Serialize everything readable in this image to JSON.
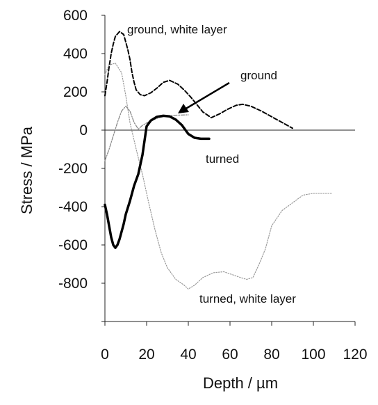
{
  "chart_data": {
    "type": "line",
    "title": "",
    "xlabel": "Depth / µm",
    "ylabel": "Stress / MPa",
    "xlim": [
      0,
      120
    ],
    "ylim": [
      -1000,
      600
    ],
    "x_ticks": [
      0,
      20,
      40,
      60,
      80,
      100,
      120
    ],
    "y_ticks": [
      600,
      400,
      200,
      0,
      -200,
      -400,
      -600,
      -800
    ],
    "grid": false,
    "legend": "none",
    "series": [
      {
        "name": "ground, white layer",
        "style": "dashed",
        "color": "#000000",
        "points": [
          [
            0,
            180
          ],
          [
            1,
            250
          ],
          [
            2,
            330
          ],
          [
            3,
            400
          ],
          [
            4,
            450
          ],
          [
            5,
            490
          ],
          [
            7,
            515
          ],
          [
            9,
            500
          ],
          [
            11,
            420
          ],
          [
            12,
            370
          ],
          [
            13,
            300
          ],
          [
            14,
            250
          ],
          [
            15,
            210
          ],
          [
            17,
            185
          ],
          [
            19,
            180
          ],
          [
            22,
            195
          ],
          [
            25,
            220
          ],
          [
            28,
            250
          ],
          [
            31,
            260
          ],
          [
            35,
            240
          ],
          [
            38,
            210
          ],
          [
            41,
            175
          ],
          [
            44,
            135
          ],
          [
            47,
            95
          ],
          [
            51,
            65
          ],
          [
            55,
            85
          ],
          [
            59,
            110
          ],
          [
            63,
            130
          ],
          [
            66,
            135
          ],
          [
            70,
            125
          ],
          [
            75,
            100
          ],
          [
            80,
            70
          ],
          [
            85,
            40
          ],
          [
            90,
            10
          ]
        ]
      },
      {
        "name": "turned, white layer",
        "style": "dotted",
        "color": "#999999",
        "points": [
          [
            0,
            290
          ],
          [
            2,
            340
          ],
          [
            5,
            350
          ],
          [
            8,
            300
          ],
          [
            10,
            180
          ],
          [
            12,
            40
          ],
          [
            15,
            -100
          ],
          [
            18,
            -230
          ],
          [
            21,
            -380
          ],
          [
            24,
            -520
          ],
          [
            27,
            -640
          ],
          [
            30,
            -720
          ],
          [
            34,
            -780
          ],
          [
            38,
            -810
          ],
          [
            40,
            -830
          ],
          [
            43,
            -810
          ],
          [
            47,
            -770
          ],
          [
            52,
            -745
          ],
          [
            57,
            -740
          ],
          [
            61,
            -755
          ],
          [
            65,
            -770
          ],
          [
            68,
            -780
          ],
          [
            71,
            -770
          ],
          [
            74,
            -700
          ],
          [
            77,
            -620
          ],
          [
            80,
            -500
          ],
          [
            85,
            -420
          ],
          [
            90,
            -380
          ],
          [
            95,
            -340
          ],
          [
            100,
            -330
          ],
          [
            109,
            -330
          ]
        ]
      },
      {
        "name": "ground",
        "style": "dash-dot",
        "color": "#888888",
        "points": [
          [
            0,
            -160
          ],
          [
            2,
            -100
          ],
          [
            4,
            -30
          ],
          [
            6,
            40
          ],
          [
            8,
            100
          ],
          [
            10,
            125
          ],
          [
            12,
            100
          ],
          [
            14,
            40
          ],
          [
            16,
            5
          ],
          [
            18,
            25
          ],
          [
            22,
            50
          ],
          [
            26,
            65
          ],
          [
            30,
            75
          ],
          [
            34,
            78
          ],
          [
            40,
            80
          ]
        ]
      },
      {
        "name": "turned",
        "style": "solid-bold",
        "color": "#000000",
        "points": [
          [
            0,
            -390
          ],
          [
            1,
            -440
          ],
          [
            2,
            -500
          ],
          [
            3,
            -560
          ],
          [
            4,
            -600
          ],
          [
            5,
            -615
          ],
          [
            6,
            -600
          ],
          [
            7,
            -570
          ],
          [
            8,
            -530
          ],
          [
            9,
            -490
          ],
          [
            10,
            -440
          ],
          [
            12,
            -370
          ],
          [
            14,
            -290
          ],
          [
            16,
            -230
          ],
          [
            18,
            -130
          ],
          [
            20,
            20
          ],
          [
            22,
            50
          ],
          [
            25,
            70
          ],
          [
            28,
            75
          ],
          [
            31,
            72
          ],
          [
            34,
            55
          ],
          [
            37,
            25
          ],
          [
            40,
            -20
          ],
          [
            43,
            -40
          ],
          [
            46,
            -45
          ],
          [
            50,
            -45
          ]
        ]
      }
    ],
    "annotations": [
      {
        "text": "ground, white layer"
      },
      {
        "text": "ground"
      },
      {
        "text": "turned"
      },
      {
        "text": "turned, white layer"
      }
    ]
  }
}
